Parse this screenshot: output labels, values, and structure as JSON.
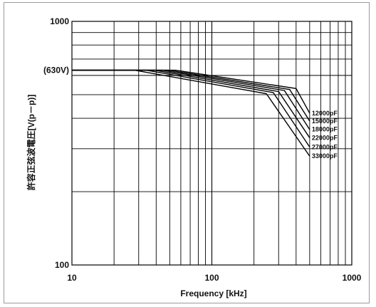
{
  "chart_data": {
    "type": "line",
    "xlabel": "Frequency [kHz]",
    "ylabel": "許容正弦波電圧[V(p－p)]",
    "x_scale": "log",
    "y_scale": "log",
    "xlim": [
      10,
      1000
    ],
    "ylim": [
      100,
      1000
    ],
    "grid": true,
    "x_ticks": [
      {
        "value": 10,
        "label": "10"
      },
      {
        "value": 100,
        "label": "100"
      },
      {
        "value": 1000,
        "label": "1000"
      }
    ],
    "y_ticks": [
      {
        "value": 1000,
        "label": "1000"
      },
      {
        "value": 630,
        "label": "(630V)"
      },
      {
        "value": 100,
        "label": "100"
      }
    ],
    "series": [
      {
        "name": "12000pF",
        "x": [
          10,
          55,
          400,
          500
        ],
        "y": [
          630,
          630,
          530,
          420
        ]
      },
      {
        "name": "15000pF",
        "x": [
          10,
          49,
          360,
          500
        ],
        "y": [
          630,
          630,
          525,
          390
        ]
      },
      {
        "name": "18000pF",
        "x": [
          10,
          44,
          330,
          500
        ],
        "y": [
          630,
          630,
          520,
          360
        ]
      },
      {
        "name": "22000pF",
        "x": [
          10,
          39,
          300,
          500
        ],
        "y": [
          630,
          630,
          515,
          333
        ]
      },
      {
        "name": "27000pF",
        "x": [
          10,
          34,
          275,
          500
        ],
        "y": [
          630,
          630,
          510,
          305
        ]
      },
      {
        "name": "33000pF",
        "x": [
          10,
          28,
          245,
          500
        ],
        "y": [
          630,
          630,
          505,
          280
        ]
      }
    ],
    "line_color": "#000000"
  }
}
